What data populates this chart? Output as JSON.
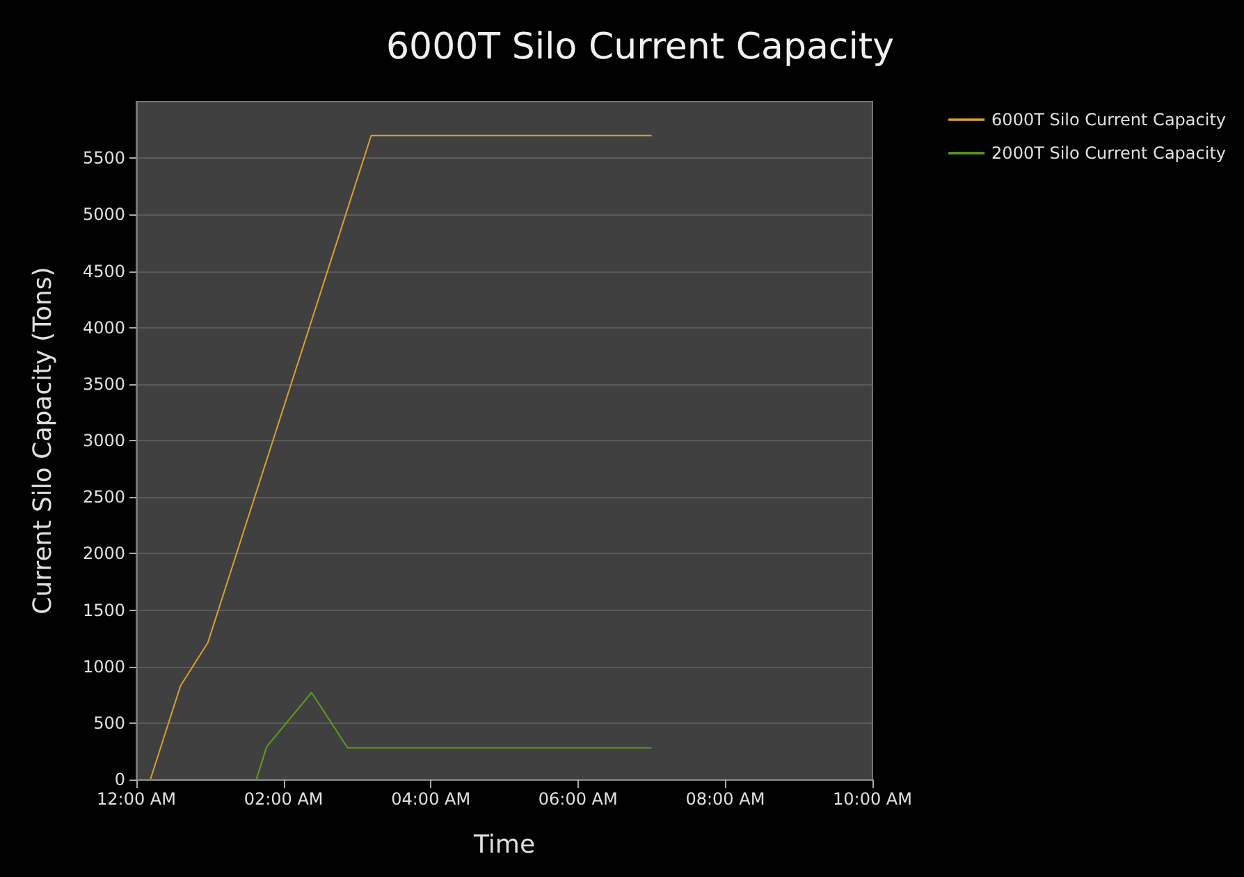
{
  "chart_data": {
    "type": "line",
    "title": "6000T Silo Current Capacity",
    "xlabel": "Time",
    "ylabel": "Current Silo Capacity (Tons)",
    "xlim": [
      0,
      10
    ],
    "xticks": [
      {
        "value": 0,
        "label": "12:00 AM"
      },
      {
        "value": 2,
        "label": "02:00 AM"
      },
      {
        "value": 4,
        "label": "04:00 AM"
      },
      {
        "value": 6,
        "label": "06:00 AM"
      },
      {
        "value": 8,
        "label": "08:00 AM"
      },
      {
        "value": 10,
        "label": "10:00 AM"
      }
    ],
    "ylim": [
      0,
      6000
    ],
    "yticks": [
      0,
      500,
      1000,
      1500,
      2000,
      2500,
      3000,
      3500,
      4000,
      4500,
      5000,
      5500
    ],
    "grid": "y",
    "legend": "top right",
    "marker": "none",
    "line_style": "solid",
    "series": [
      {
        "name": "6000T Silo Current Capacity",
        "color": "#d9a030",
        "x": [
          0,
          0.19,
          0.6,
          0.97,
          3.19,
          7.0
        ],
        "values": [
          0,
          0,
          830,
          1210,
          5700,
          5700
        ]
      },
      {
        "name": "2000T Silo Current Capacity",
        "color": "#5c9e1c",
        "x": [
          0,
          1.63,
          1.77,
          2.38,
          2.87,
          7.0
        ],
        "values": [
          0,
          0,
          290,
          770,
          280,
          280
        ]
      }
    ]
  }
}
